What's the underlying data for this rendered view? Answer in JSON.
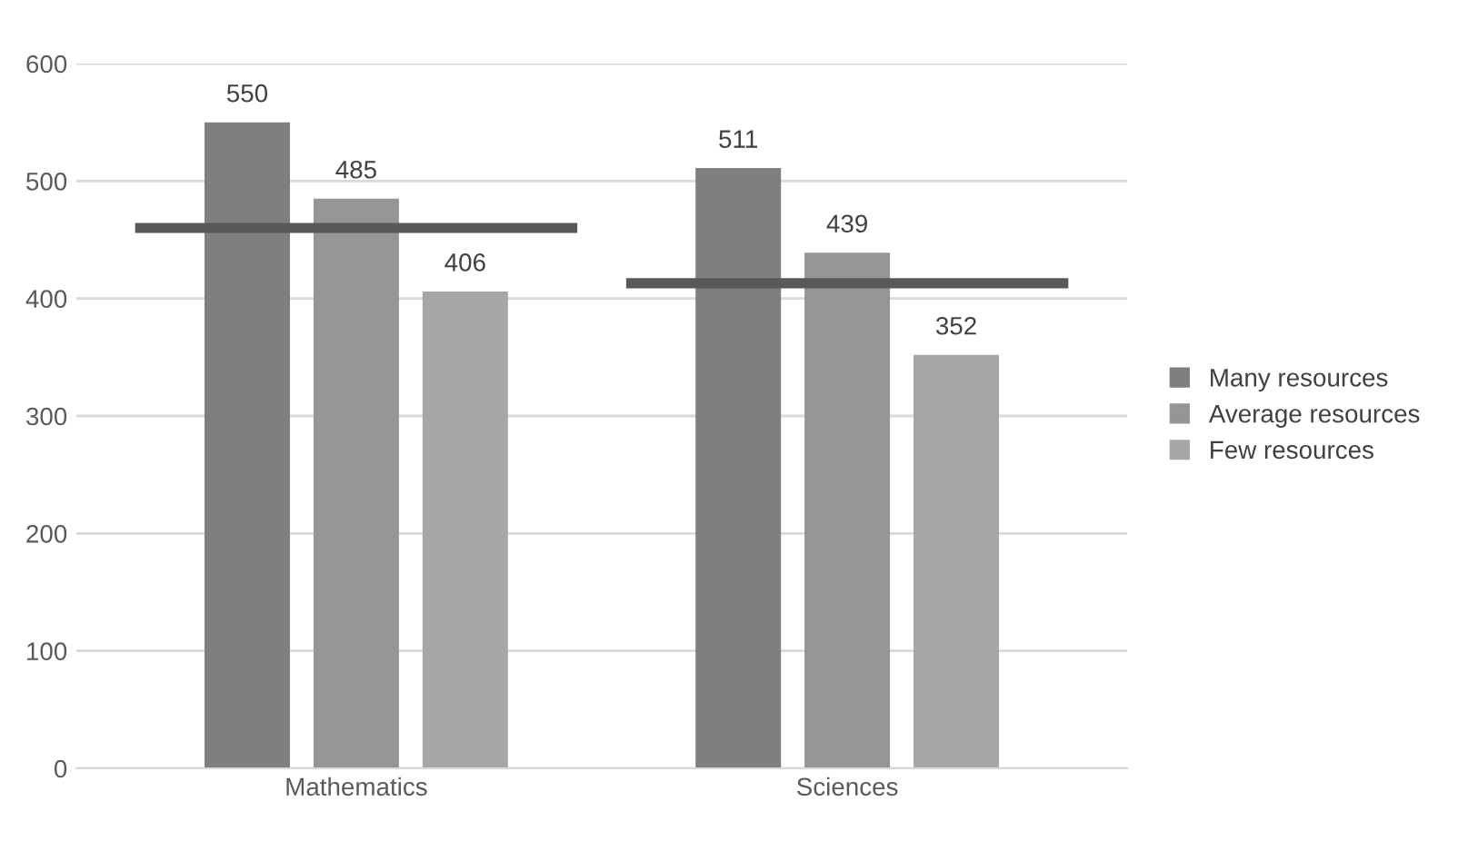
{
  "chart_data": {
    "type": "bar",
    "categories": [
      "Mathematics",
      "Sciences"
    ],
    "series": [
      {
        "name": "Many resources",
        "color": "#7f7f81",
        "values": [
          550,
          511
        ]
      },
      {
        "name": "Average resources",
        "color": "#959597",
        "values": [
          485,
          439
        ]
      },
      {
        "name": "Few resources",
        "color": "#a6a6a8",
        "values": [
          406,
          352
        ]
      }
    ],
    "ref_lines": [
      {
        "axis": "y",
        "value": 460,
        "color": "#595959"
      },
      {
        "axis": "y",
        "value": 413,
        "color": "#595959"
      }
    ],
    "ylim": [
      0,
      600
    ],
    "yticks": [
      0,
      100,
      200,
      300,
      400,
      500,
      600
    ],
    "grid": "y",
    "legend": "right",
    "data_labels": true
  }
}
